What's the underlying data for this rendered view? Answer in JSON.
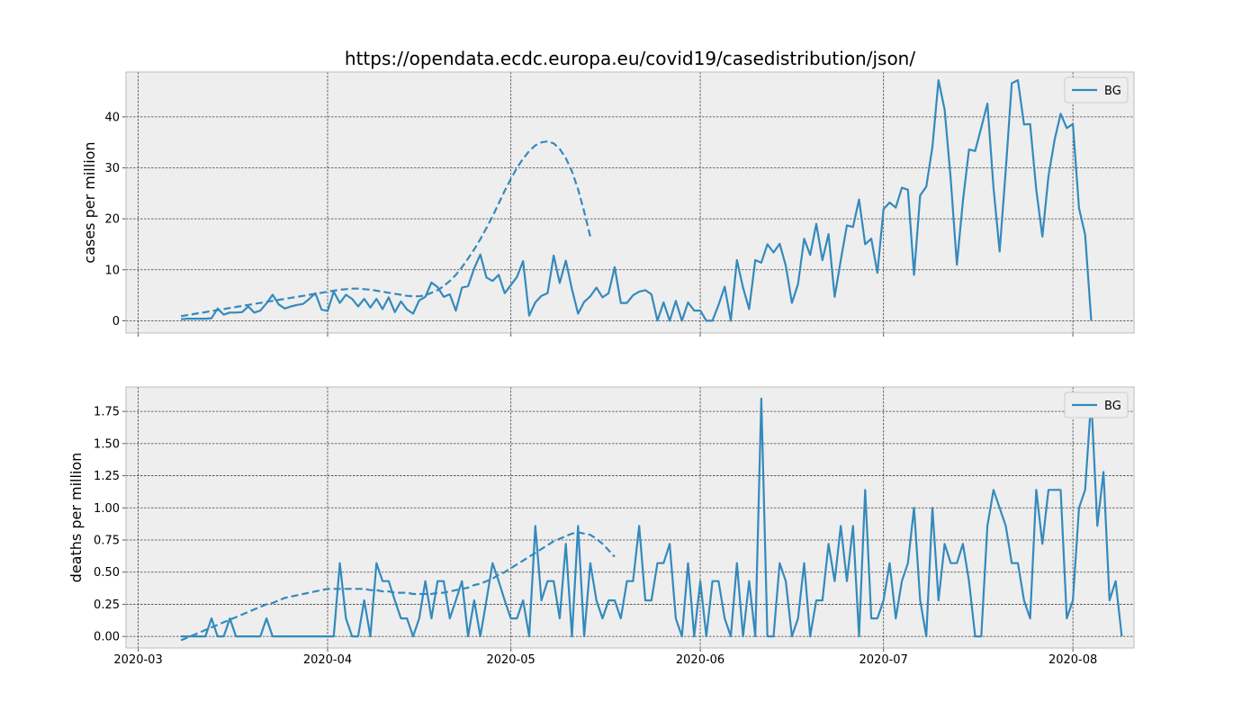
{
  "title": "https://opendata.ecdc.europa.eu/covid19/casedistribution/json/",
  "colors": {
    "series": "#348abd",
    "axes_bg": "#eeeeee",
    "grid": "#404040",
    "spine": "#bcbcbc"
  },
  "chart_data": [
    {
      "type": "line",
      "ylabel": "cases per million",
      "xlabel": "",
      "xlim": [
        "2020-02-28",
        "2020-08-11"
      ],
      "ylim": [
        -2.4,
        48.8
      ],
      "yticks": [
        0,
        10,
        20,
        30,
        40
      ],
      "ytick_labels": [
        "0",
        "10",
        "20",
        "30",
        "40"
      ],
      "grid": true,
      "legend_location": "upper right",
      "series": [
        {
          "name": "BG",
          "style": "solid",
          "start_date": "2020-03-08",
          "step_days": 1,
          "values": [
            0.3,
            0.4,
            0.4,
            0.4,
            0.4,
            0.5,
            2.4,
            1.2,
            1.6,
            1.6,
            1.7,
            2.8,
            1.6,
            2.0,
            3.4,
            5.1,
            3.2,
            2.4,
            2.8,
            3.1,
            3.3,
            4.3,
            5.4,
            2.2,
            1.9,
            5.7,
            3.5,
            5.1,
            4.3,
            2.8,
            4.3,
            2.6,
            4.3,
            2.3,
            4.6,
            1.7,
            3.8,
            2.2,
            1.4,
            4.0,
            4.7,
            7.5,
            6.6,
            4.7,
            5.2,
            2.0,
            6.5,
            6.8,
            10.3,
            13.0,
            8.5,
            7.8,
            9.0,
            5.4,
            7.0,
            8.6,
            11.7,
            1.0,
            3.6,
            4.9,
            5.4,
            12.8,
            7.4,
            11.8,
            6.2,
            1.4,
            3.7,
            4.8,
            6.5,
            4.6,
            5.4,
            10.5,
            3.5,
            3.5,
            5.0,
            5.7,
            6.0,
            5.2,
            0.0,
            3.6,
            0.0,
            3.9,
            0.0,
            3.6,
            2.0,
            2.0,
            0.0,
            0.0,
            3.1,
            6.7,
            0.0,
            11.9,
            6.5,
            2.3,
            11.9,
            11.4,
            15.0,
            13.4,
            15.1,
            10.8,
            3.5,
            7.2,
            16.1,
            12.9,
            19.0,
            11.9,
            17.0,
            4.7,
            11.9,
            18.7,
            18.4,
            23.8,
            15.0,
            16.1,
            9.4,
            21.9,
            23.2,
            22.2,
            26.1,
            25.7,
            9.0,
            24.6,
            26.3,
            34.1,
            47.2,
            41.4,
            27.7,
            11.0,
            23.5,
            33.6,
            33.3,
            37.9,
            42.6,
            26.1,
            13.6,
            29.5,
            46.6,
            47.2,
            38.5,
            38.6,
            25.7,
            16.5,
            28.4,
            35.5,
            40.6,
            37.8,
            38.6,
            22.1,
            16.9,
            0.0
          ]
        },
        {
          "name": "",
          "style": "dashed",
          "start_date": "2020-03-08",
          "step_days": 1,
          "values": [
            0.9,
            1.1,
            1.3,
            1.5,
            1.7,
            1.9,
            2.1,
            2.3,
            2.5,
            2.7,
            2.9,
            3.1,
            3.3,
            3.5,
            3.7,
            3.9,
            4.1,
            4.3,
            4.5,
            4.7,
            4.9,
            5.1,
            5.3,
            5.5,
            5.7,
            5.9,
            6.1,
            6.2,
            6.3,
            6.3,
            6.2,
            6.1,
            5.9,
            5.7,
            5.5,
            5.3,
            5.1,
            4.9,
            4.8,
            4.8,
            5.0,
            5.5,
            6.0,
            6.8,
            7.8,
            9.0,
            10.5,
            12.2,
            14.0,
            16.0,
            18.2,
            20.5,
            23.0,
            25.5,
            27.8,
            30.0,
            31.8,
            33.3,
            34.4,
            35.0,
            35.2,
            34.8,
            33.7,
            31.9,
            29.3,
            25.8,
            21.4,
            16.5
          ]
        }
      ]
    },
    {
      "type": "line",
      "ylabel": "deaths per million",
      "xlabel": "",
      "xlim": [
        "2020-02-28",
        "2020-08-11"
      ],
      "ylim": [
        -0.09,
        1.94
      ],
      "yticks": [
        0,
        0.25,
        0.5,
        0.75,
        1.0,
        1.25,
        1.5,
        1.75
      ],
      "ytick_labels": [
        "0.00",
        "0.25",
        "0.50",
        "0.75",
        "1.00",
        "1.25",
        "1.50",
        "1.75"
      ],
      "xtick_labels": [
        "2020-03",
        "2020-04",
        "2020-05",
        "2020-06",
        "2020-07",
        "2020-08"
      ],
      "grid": true,
      "legend_location": "upper right",
      "series": [
        {
          "name": "BG",
          "style": "solid",
          "start_date": "2020-03-08",
          "step_days": 1,
          "values": [
            0.0,
            0.0,
            0.0,
            0.0,
            0.0,
            0.14,
            0.0,
            0.0,
            0.14,
            0.0,
            0.0,
            0.0,
            0.0,
            0.0,
            0.14,
            0.0,
            0.0,
            0.0,
            0.0,
            0.0,
            0.0,
            0.0,
            0.0,
            0.0,
            0.0,
            0.0,
            0.57,
            0.14,
            0.0,
            0.0,
            0.28,
            0.0,
            0.57,
            0.43,
            0.43,
            0.28,
            0.14,
            0.14,
            0.0,
            0.14,
            0.43,
            0.14,
            0.43,
            0.43,
            0.14,
            0.28,
            0.43,
            0.0,
            0.28,
            0.0,
            0.28,
            0.57,
            0.43,
            0.28,
            0.14,
            0.14,
            0.28,
            0.0,
            0.86,
            0.28,
            0.43,
            0.43,
            0.14,
            0.72,
            0.0,
            0.86,
            0.0,
            0.57,
            0.28,
            0.14,
            0.28,
            0.28,
            0.14,
            0.43,
            0.43,
            0.86,
            0.28,
            0.28,
            0.57,
            0.57,
            0.72,
            0.14,
            0.0,
            0.57,
            0.0,
            0.43,
            0.0,
            0.43,
            0.43,
            0.14,
            0.0,
            0.57,
            0.0,
            0.43,
            0.0,
            1.85,
            0.0,
            0.0,
            0.57,
            0.43,
            0.0,
            0.14,
            0.57,
            0.0,
            0.28,
            0.28,
            0.72,
            0.43,
            0.86,
            0.43,
            0.86,
            0.0,
            1.14,
            0.14,
            0.14,
            0.28,
            0.57,
            0.14,
            0.43,
            0.57,
            1.0,
            0.28,
            0.0,
            1.0,
            0.28,
            0.72,
            0.57,
            0.57,
            0.72,
            0.43,
            0.0,
            0.0,
            0.86,
            1.14,
            1.0,
            0.86,
            0.57,
            0.57,
            0.28,
            0.14,
            1.14,
            0.72,
            1.14,
            1.14,
            1.14,
            0.14,
            0.28,
            1.0,
            1.14,
            1.85,
            0.86,
            1.28,
            0.28,
            0.43,
            0.0
          ]
        },
        {
          "name": "",
          "style": "dashed",
          "start_date": "2020-03-08",
          "step_days": 1,
          "values": [
            -0.03,
            -0.01,
            0.01,
            0.03,
            0.05,
            0.07,
            0.09,
            0.11,
            0.13,
            0.15,
            0.17,
            0.19,
            0.21,
            0.23,
            0.25,
            0.26,
            0.28,
            0.3,
            0.31,
            0.32,
            0.33,
            0.34,
            0.35,
            0.36,
            0.37,
            0.37,
            0.37,
            0.37,
            0.37,
            0.37,
            0.37,
            0.36,
            0.36,
            0.35,
            0.35,
            0.34,
            0.34,
            0.34,
            0.33,
            0.33,
            0.33,
            0.33,
            0.34,
            0.34,
            0.35,
            0.36,
            0.37,
            0.38,
            0.4,
            0.41,
            0.43,
            0.45,
            0.48,
            0.5,
            0.53,
            0.56,
            0.59,
            0.62,
            0.65,
            0.68,
            0.71,
            0.74,
            0.76,
            0.78,
            0.8,
            0.81,
            0.8,
            0.79,
            0.76,
            0.72,
            0.67,
            0.62
          ]
        }
      ]
    }
  ]
}
